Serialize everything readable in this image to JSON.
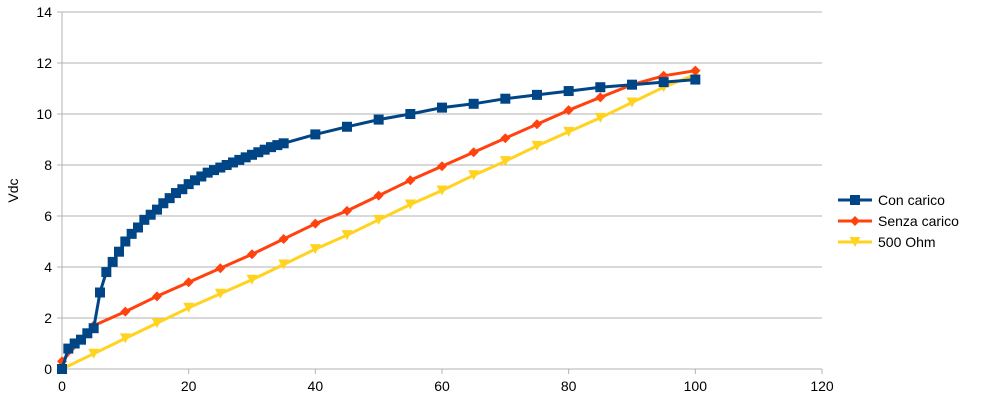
{
  "chart_data": {
    "type": "line",
    "title": "",
    "xlabel": "",
    "ylabel": "Vdc",
    "xlim": [
      0,
      120
    ],
    "ylim": [
      0,
      14
    ],
    "x_ticks": [
      "0",
      "20",
      "40",
      "60",
      "80",
      "100",
      "120"
    ],
    "y_ticks": [
      "0",
      "2",
      "4",
      "6",
      "8",
      "10",
      "12",
      "14"
    ],
    "grid": "horizontal",
    "legend_position": "right",
    "series": [
      {
        "name": "Con carico",
        "color": "#004586",
        "marker": "square",
        "points": [
          [
            0,
            0
          ],
          [
            1,
            0.8
          ],
          [
            2,
            1.0
          ],
          [
            3,
            1.15
          ],
          [
            4,
            1.4
          ],
          [
            5,
            1.6
          ],
          [
            6,
            3.0
          ],
          [
            7,
            3.8
          ],
          [
            8,
            4.2
          ],
          [
            9,
            4.6
          ],
          [
            10,
            5.0
          ],
          [
            11,
            5.3
          ],
          [
            12,
            5.55
          ],
          [
            13,
            5.85
          ],
          [
            14,
            6.05
          ],
          [
            15,
            6.25
          ],
          [
            16,
            6.5
          ],
          [
            17,
            6.7
          ],
          [
            18,
            6.9
          ],
          [
            19,
            7.05
          ],
          [
            20,
            7.25
          ],
          [
            21,
            7.4
          ],
          [
            22,
            7.55
          ],
          [
            23,
            7.7
          ],
          [
            24,
            7.8
          ],
          [
            25,
            7.9
          ],
          [
            26,
            8.0
          ],
          [
            27,
            8.1
          ],
          [
            28,
            8.2
          ],
          [
            29,
            8.3
          ],
          [
            30,
            8.4
          ],
          [
            31,
            8.5
          ],
          [
            32,
            8.6
          ],
          [
            33,
            8.7
          ],
          [
            34,
            8.78
          ],
          [
            35,
            8.85
          ],
          [
            40,
            9.2
          ],
          [
            45,
            9.5
          ],
          [
            50,
            9.78
          ],
          [
            55,
            10.0
          ],
          [
            60,
            10.25
          ],
          [
            65,
            10.4
          ],
          [
            70,
            10.6
          ],
          [
            75,
            10.75
          ],
          [
            80,
            10.9
          ],
          [
            85,
            11.05
          ],
          [
            90,
            11.15
          ],
          [
            95,
            11.25
          ],
          [
            100,
            11.35
          ]
        ]
      },
      {
        "name": "Senza carico",
        "color": "#ff420e",
        "marker": "diamond",
        "points": [
          [
            0,
            0.3
          ],
          [
            5,
            1.7
          ],
          [
            10,
            2.25
          ],
          [
            15,
            2.85
          ],
          [
            20,
            3.4
          ],
          [
            25,
            3.95
          ],
          [
            30,
            4.5
          ],
          [
            35,
            5.1
          ],
          [
            40,
            5.7
          ],
          [
            45,
            6.2
          ],
          [
            50,
            6.8
          ],
          [
            55,
            7.4
          ],
          [
            60,
            7.95
          ],
          [
            65,
            8.5
          ],
          [
            70,
            9.05
          ],
          [
            75,
            9.6
          ],
          [
            80,
            10.15
          ],
          [
            85,
            10.65
          ],
          [
            90,
            11.15
          ],
          [
            95,
            11.5
          ],
          [
            100,
            11.7
          ]
        ]
      },
      {
        "name": "500 Ohm",
        "color": "#ffd320",
        "marker": "triangle-down",
        "points": [
          [
            0,
            0
          ],
          [
            5,
            0.6
          ],
          [
            10,
            1.2
          ],
          [
            15,
            1.8
          ],
          [
            20,
            2.4
          ],
          [
            25,
            2.95
          ],
          [
            30,
            3.5
          ],
          [
            35,
            4.1
          ],
          [
            40,
            4.7
          ],
          [
            45,
            5.25
          ],
          [
            50,
            5.85
          ],
          [
            55,
            6.45
          ],
          [
            60,
            7.0
          ],
          [
            65,
            7.6
          ],
          [
            70,
            8.15
          ],
          [
            75,
            8.75
          ],
          [
            80,
            9.3
          ],
          [
            85,
            9.85
          ],
          [
            90,
            10.45
          ],
          [
            95,
            11.05
          ],
          [
            100,
            11.55
          ]
        ]
      }
    ]
  }
}
